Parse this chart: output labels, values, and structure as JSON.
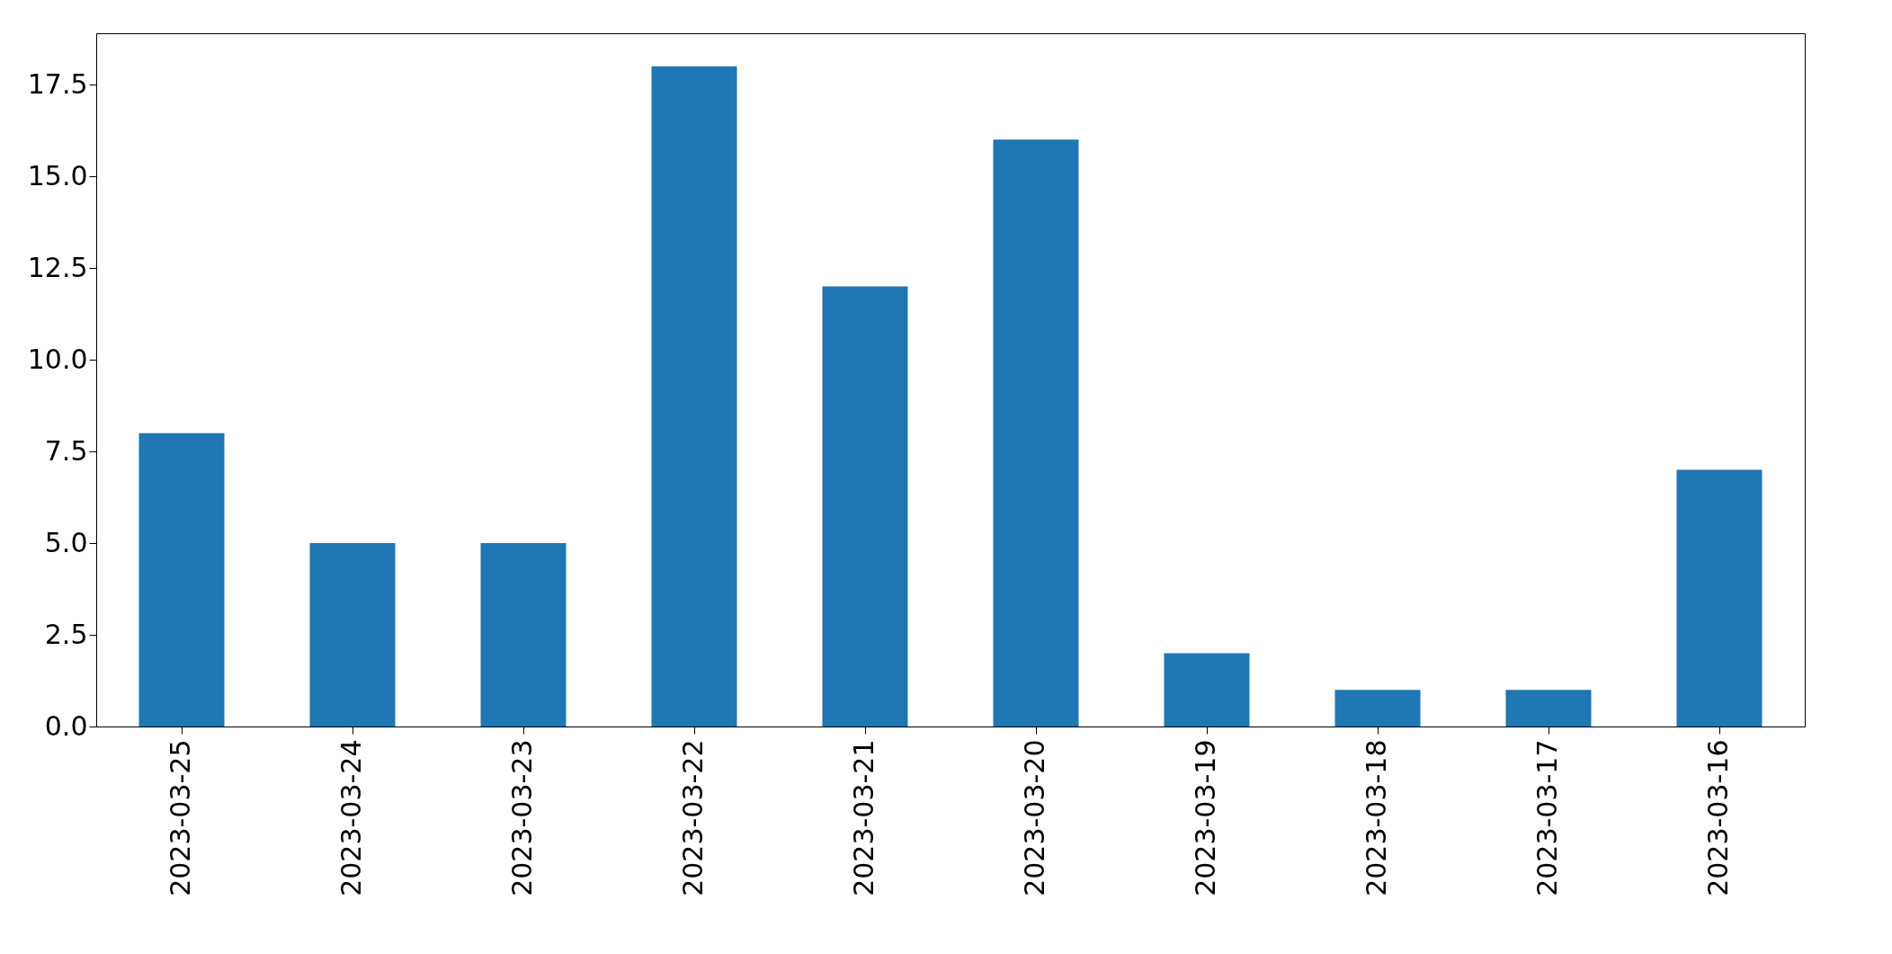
{
  "chart_data": {
    "type": "bar",
    "categories": [
      "2023-03-25",
      "2023-03-24",
      "2023-03-23",
      "2023-03-22",
      "2023-03-21",
      "2023-03-20",
      "2023-03-19",
      "2023-03-18",
      "2023-03-17",
      "2023-03-16"
    ],
    "values": [
      8,
      5,
      5,
      18,
      12,
      16,
      2,
      1,
      1,
      7
    ],
    "color": "#1f77b4",
    "ylim": [
      0,
      18.9
    ],
    "yticks": [
      {
        "value": 0,
        "label": "0.0"
      },
      {
        "value": 2.5,
        "label": "2.5"
      },
      {
        "value": 5,
        "label": "5.0"
      },
      {
        "value": 7.5,
        "label": "7.5"
      },
      {
        "value": 10,
        "label": "10.0"
      },
      {
        "value": 12.5,
        "label": "12.5"
      },
      {
        "value": 15,
        "label": "15.0"
      },
      {
        "value": 17.5,
        "label": "17.5"
      }
    ],
    "grid": false
  }
}
